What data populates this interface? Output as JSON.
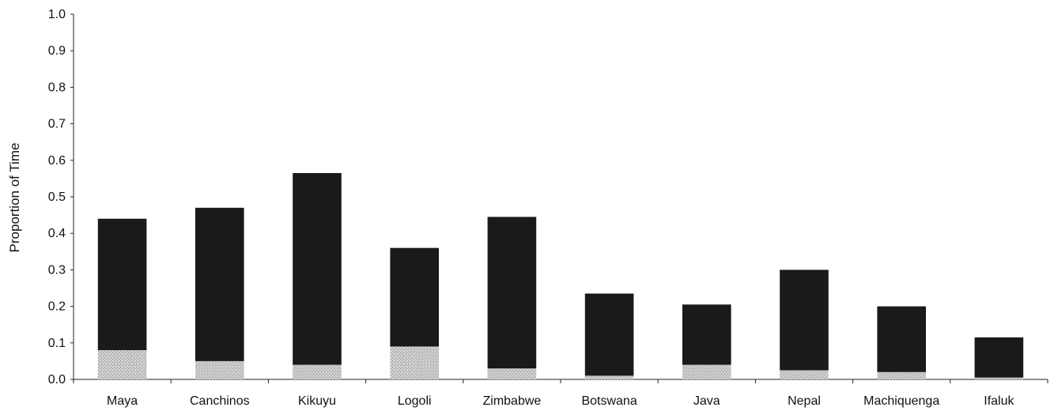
{
  "chart_data": {
    "type": "bar",
    "stacked": true,
    "title": "",
    "xlabel": "",
    "ylabel": "Proportion of Time",
    "ylim": [
      0,
      1.0
    ],
    "yticks": [
      "0.0",
      "0.1",
      "0.2",
      "0.3",
      "0.4",
      "0.5",
      "0.6",
      "0.7",
      "0.8",
      "0.9",
      "1.0"
    ],
    "categories": [
      "Maya",
      "Canchinos",
      "Kikuyu",
      "Logoli",
      "Zimbabwe",
      "Botswana",
      "Java",
      "Nepal",
      "Machiquenga",
      "Ifaluk"
    ],
    "series": [
      {
        "values": [
          0.08,
          0.05,
          0.04,
          0.09,
          0.03,
          0.01,
          0.04,
          0.025,
          0.02,
          0.005
        ],
        "color": "#c4c4c4"
      },
      {
        "values": [
          0.36,
          0.42,
          0.525,
          0.27,
          0.415,
          0.225,
          0.165,
          0.275,
          0.18,
          0.11
        ],
        "color": "#1a1a1a"
      }
    ],
    "grid": false,
    "legend": "none"
  }
}
